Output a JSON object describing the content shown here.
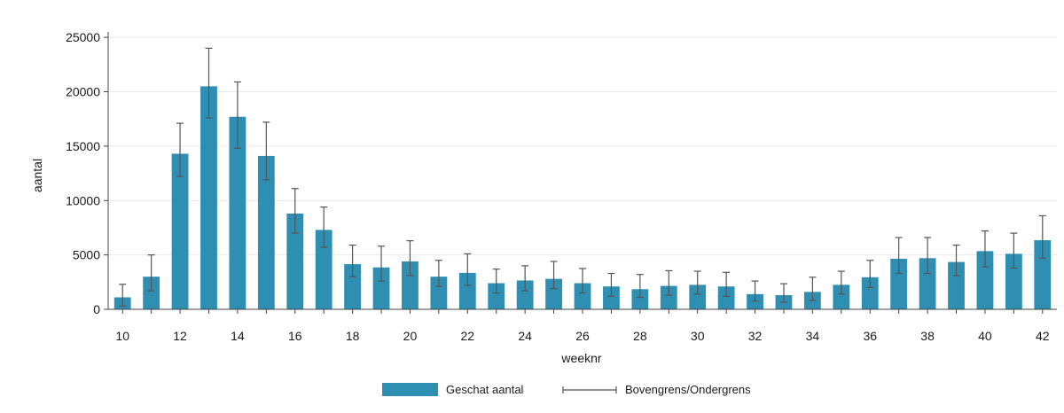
{
  "chart_data": {
    "type": "bar",
    "xlabel": "weeknr",
    "ylabel": "aantal",
    "x": [
      10,
      11,
      12,
      13,
      14,
      15,
      16,
      17,
      18,
      19,
      20,
      21,
      22,
      23,
      24,
      25,
      26,
      27,
      28,
      29,
      30,
      31,
      32,
      33,
      34,
      35,
      36,
      37,
      38,
      39,
      40,
      41,
      42
    ],
    "x_tick_labels": [
      "10",
      "12",
      "14",
      "16",
      "18",
      "20",
      "22",
      "24",
      "26",
      "28",
      "30",
      "32",
      "34",
      "36",
      "38",
      "40",
      "42"
    ],
    "y_ticks": [
      0,
      5000,
      10000,
      15000,
      20000,
      25000
    ],
    "y_tick_labels": [
      "0",
      "5000",
      "10000",
      "15000",
      "20000",
      "25000"
    ],
    "ylim": [
      0,
      25500
    ],
    "grid": true,
    "legend_position": "bottom",
    "series": [
      {
        "name": "Geschat aantal",
        "color": "#2e8fb3",
        "values": [
          1100,
          3000,
          14300,
          20500,
          17700,
          14100,
          8800,
          7300,
          4150,
          3850,
          4400,
          3000,
          3350,
          2400,
          2650,
          2800,
          2400,
          2100,
          1850,
          2150,
          2250,
          2100,
          1400,
          1300,
          1600,
          2250,
          2950,
          4650,
          4700,
          4350,
          5350,
          5100,
          6350
        ]
      },
      {
        "name": "Bovengrens/Ondergrens",
        "color": "#555555",
        "upper": [
          2300,
          5000,
          17100,
          24000,
          20900,
          17200,
          11100,
          9400,
          5900,
          5800,
          6300,
          4500,
          5100,
          3700,
          4000,
          4400,
          3750,
          3300,
          3200,
          3550,
          3500,
          3400,
          2600,
          2350,
          2950,
          3500,
          4500,
          6600,
          6600,
          5900,
          7200,
          7000,
          8600
        ],
        "lower": [
          300,
          1700,
          12200,
          17600,
          14800,
          11900,
          7000,
          5700,
          3000,
          2600,
          3100,
          2100,
          2200,
          1500,
          1700,
          1900,
          1500,
          1200,
          1100,
          1300,
          1400,
          1200,
          750,
          650,
          800,
          1400,
          2000,
          3300,
          3300,
          3100,
          3900,
          3800,
          4700
        ]
      }
    ]
  }
}
